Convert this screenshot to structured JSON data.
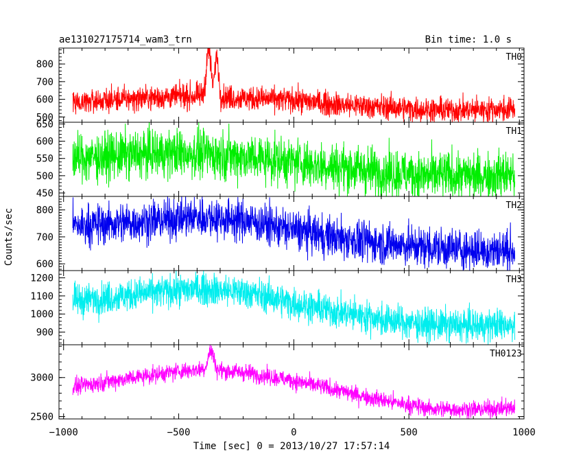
{
  "header": {
    "left_title": "ae131027175714_wam3_trn",
    "right_title": "Bin time: 1.0 s"
  },
  "chart_data": {
    "type": "line",
    "title": "ae131027175714_wam3_trn",
    "subtitle": "Bin time: 1.0 s",
    "xlabel": "Time [sec] 0 = 2013/10/27 17:57:14",
    "ylabel": "Counts/sec",
    "xlim": [
      -1020,
      1000
    ],
    "x_ticks": [
      -1000,
      -500,
      0,
      500,
      1000
    ],
    "x_tick_labels": [
      "−1000",
      "−500",
      "0",
      "500",
      "1000"
    ],
    "x_data_range": [
      -960,
      960
    ],
    "bin_time_s": 1.0,
    "grid": false,
    "legend": "none",
    "panels": [
      {
        "name": "TH0",
        "color": "#ff0000",
        "ylim": [
          470,
          890
        ],
        "y_ticks": [
          500,
          600,
          700,
          800
        ],
        "y_tick_labels": [
          "500",
          "600",
          "700",
          "800"
        ],
        "trend_x": [
          -960,
          -600,
          -400,
          -200,
          0,
          200,
          400,
          600,
          800,
          960
        ],
        "trend_y": [
          585,
          610,
          620,
          605,
          595,
          570,
          555,
          540,
          540,
          545
        ],
        "noise_amplitude": 35,
        "features": [
          {
            "center": -370,
            "width": 10,
            "height": 260
          },
          {
            "center": -335,
            "width": 8,
            "height": 230
          }
        ]
      },
      {
        "name": "TH1",
        "color": "#00ee00",
        "ylim": [
          440,
          655
        ],
        "y_ticks": [
          450,
          500,
          550,
          600,
          650
        ],
        "y_tick_labels": [
          "450",
          "500",
          "550",
          "600",
          "650"
        ],
        "trend_x": [
          -960,
          -600,
          -400,
          -200,
          0,
          200,
          400,
          600,
          800,
          960
        ],
        "trend_y": [
          550,
          565,
          565,
          555,
          540,
          525,
          510,
          500,
          500,
          505
        ],
        "noise_amplitude": 35,
        "features": []
      },
      {
        "name": "TH2",
        "color": "#0000ee",
        "ylim": [
          575,
          850
        ],
        "y_ticks": [
          600,
          700,
          800
        ],
        "y_tick_labels": [
          "600",
          "700",
          "800"
        ],
        "trend_x": [
          -960,
          -600,
          -400,
          -200,
          0,
          200,
          400,
          600,
          800,
          960
        ],
        "trend_y": [
          740,
          760,
          775,
          760,
          725,
          695,
          675,
          660,
          650,
          650
        ],
        "noise_amplitude": 38,
        "features": []
      },
      {
        "name": "TH3",
        "color": "#00eeee",
        "ylim": [
          830,
          1240
        ],
        "y_ticks": [
          900,
          1000,
          1100,
          1200
        ],
        "y_tick_labels": [
          "900",
          "1000",
          "1100",
          "1200"
        ],
        "trend_x": [
          -960,
          -600,
          -400,
          -200,
          0,
          200,
          300,
          400,
          600,
          800,
          960
        ],
        "trend_y": [
          1070,
          1120,
          1140,
          1120,
          1060,
          1010,
          990,
          965,
          940,
          935,
          945
        ],
        "noise_amplitude": 45,
        "features": []
      },
      {
        "name": "TH0123",
        "color": "#ff00ff",
        "ylim": [
          2470,
          3420
        ],
        "y_ticks": [
          2500,
          3000
        ],
        "y_tick_labels": [
          "2500",
          "3000"
        ],
        "trend_x": [
          -960,
          -700,
          -500,
          -400,
          -200,
          0,
          200,
          400,
          600,
          800,
          960
        ],
        "trend_y": [
          2880,
          3000,
          3080,
          3110,
          3060,
          2960,
          2830,
          2700,
          2600,
          2590,
          2610
        ],
        "noise_amplitude": 55,
        "features": [
          {
            "center": -360,
            "width": 12,
            "height": 250
          }
        ]
      }
    ]
  }
}
